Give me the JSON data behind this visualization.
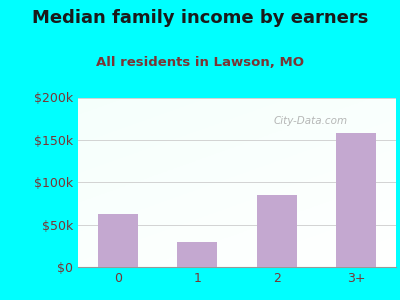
{
  "title": "Median family income by earners",
  "subtitle": "All residents in Lawson, MO",
  "categories": [
    "0",
    "1",
    "2",
    "3+"
  ],
  "values": [
    63000,
    30000,
    85000,
    158000
  ],
  "bar_color": "#c4a8d0",
  "ylim": [
    0,
    200000
  ],
  "yticks": [
    0,
    50000,
    100000,
    150000,
    200000
  ],
  "ytick_labels": [
    "$0",
    "$50k",
    "$100k",
    "$150k",
    "$200k"
  ],
  "background_outer": "#00ffff",
  "title_color": "#1a1a1a",
  "subtitle_color": "#7a3535",
  "tick_color": "#7a3535",
  "watermark": "City-Data.com",
  "title_fontsize": 13,
  "subtitle_fontsize": 9.5,
  "grid_color": "#cccccc"
}
